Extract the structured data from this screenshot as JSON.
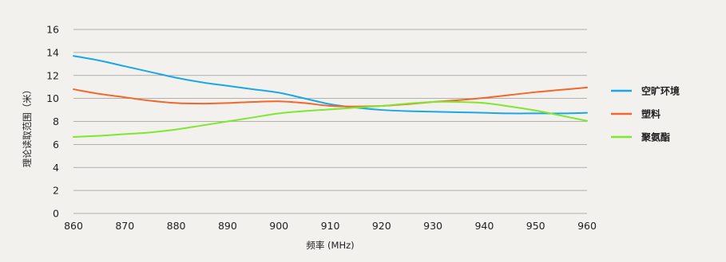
{
  "chart_data": {
    "type": "line",
    "xlabel": "频率 (MHz)",
    "ylabel": "理论读取范围（米）",
    "xlim": [
      860,
      960
    ],
    "ylim": [
      0,
      16
    ],
    "xticks": [
      860,
      870,
      880,
      890,
      900,
      910,
      920,
      930,
      940,
      950,
      960
    ],
    "yticks": [
      0,
      2,
      4,
      6,
      8,
      10,
      12,
      14,
      16
    ],
    "grid": true,
    "legend_position": "right",
    "series": [
      {
        "name": "空旷环境",
        "color": "#1aa7e8",
        "x": [
          860,
          865,
          870,
          875,
          880,
          885,
          890,
          895,
          900,
          905,
          910,
          915,
          920,
          925,
          930,
          935,
          940,
          945,
          950,
          955,
          960
        ],
        "y": [
          13.7,
          13.3,
          12.8,
          12.3,
          11.8,
          11.4,
          11.1,
          10.8,
          10.5,
          10.0,
          9.5,
          9.2,
          9.0,
          8.9,
          8.85,
          8.8,
          8.75,
          8.7,
          8.7,
          8.7,
          8.75
        ]
      },
      {
        "name": "塑料",
        "color": "#f2672a",
        "x": [
          860,
          865,
          870,
          875,
          880,
          885,
          890,
          895,
          900,
          905,
          910,
          915,
          920,
          925,
          930,
          935,
          940,
          945,
          950,
          955,
          960
        ],
        "y": [
          10.8,
          10.4,
          10.1,
          9.8,
          9.6,
          9.55,
          9.6,
          9.7,
          9.75,
          9.6,
          9.35,
          9.3,
          9.35,
          9.5,
          9.7,
          9.85,
          10.05,
          10.3,
          10.55,
          10.75,
          10.95
        ]
      },
      {
        "name": "聚氨酯",
        "color": "#7de82d",
        "x": [
          860,
          865,
          870,
          875,
          880,
          885,
          890,
          895,
          900,
          905,
          910,
          915,
          920,
          925,
          930,
          935,
          940,
          945,
          950,
          955,
          960
        ],
        "y": [
          6.65,
          6.75,
          6.9,
          7.05,
          7.3,
          7.65,
          8.0,
          8.35,
          8.7,
          8.9,
          9.05,
          9.2,
          9.35,
          9.55,
          9.7,
          9.7,
          9.6,
          9.3,
          8.95,
          8.5,
          8.05
        ]
      }
    ]
  }
}
